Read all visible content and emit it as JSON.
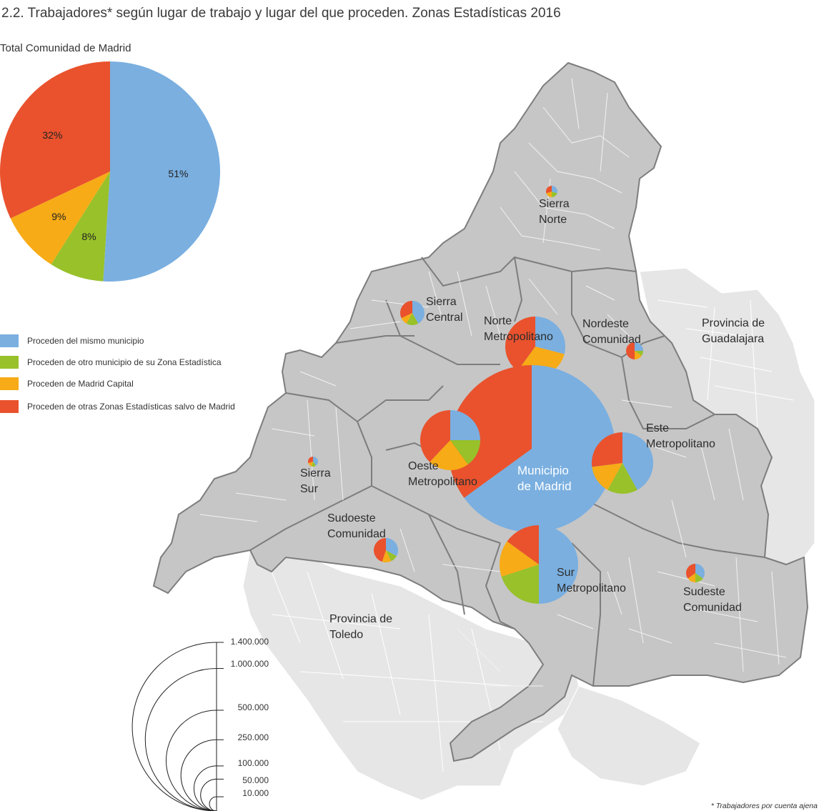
{
  "title": "2.2. Trabajadores* según lugar de trabajo y lugar del que proceden. Zonas Estadísticas 2016",
  "total_pie": {
    "title": "Total Comunidad de Madrid",
    "slices": [
      {
        "label": "51%",
        "value": 51,
        "color": "#7aafe0"
      },
      {
        "label": "8%",
        "value": 8,
        "color": "#98c12a"
      },
      {
        "label": "9%",
        "value": 9,
        "color": "#f7ab16"
      },
      {
        "label": "32%",
        "value": 32,
        "color": "#e9522d"
      }
    ]
  },
  "legend": [
    {
      "label": " Proceden del mismo municipio",
      "color": "#7aafe0"
    },
    {
      "label": "Proceden de otro municipio de su Zona Estadística",
      "color": "#98c12a"
    },
    {
      "label": "Proceden de Madrid Capital",
      "color": "#f7ab16"
    },
    {
      "label": "Proceden de otras Zonas Estadísticas salvo de Madrid",
      "color": "#e9522d"
    }
  ],
  "regions": {
    "guadalajara": "Provincia de Guadalajara",
    "toledo": "Provincia de Toledo"
  },
  "zones": [
    {
      "name": "Sierra Norte",
      "label1": "Sierra",
      "label2": "Norte",
      "shares": [
        30,
        20,
        20,
        30
      ]
    },
    {
      "name": "Sierra Central",
      "label1": "Sierra",
      "label2": "Central",
      "shares": [
        42,
        16,
        10,
        32
      ]
    },
    {
      "name": "Norte Metropolitano",
      "label1": "Norte",
      "label2": "Metropolitano",
      "shares": [
        29,
        0,
        31,
        40
      ]
    },
    {
      "name": "Nordeste Comunidad",
      "label1": "Nordeste",
      "label2": "Comunidad",
      "shares": [
        25,
        10,
        15,
        50
      ]
    },
    {
      "name": "Municipio de Madrid",
      "label1": "Municipio",
      "label2": "de Madrid",
      "shares": [
        65,
        0,
        0,
        35
      ]
    },
    {
      "name": "Oeste Metropolitano",
      "label1": "Oeste",
      "label2": "Metropolitano",
      "shares": [
        25,
        15,
        22,
        38
      ]
    },
    {
      "name": "Este Metropolitano",
      "label1": "Este",
      "label2": "Metropolitano",
      "shares": [
        42,
        16,
        15,
        27
      ]
    },
    {
      "name": "Sierra Sur",
      "label1": "Sierra",
      "label2": "Sur",
      "shares": [
        40,
        15,
        15,
        30
      ]
    },
    {
      "name": "Sudoeste Comunidad",
      "label1": "Sudoeste",
      "label2": "Comunidad",
      "shares": [
        33,
        10,
        12,
        45
      ]
    },
    {
      "name": "Sur Metropolitano",
      "label1": "Sur",
      "label2": "Metropolitano",
      "shares": [
        50,
        20,
        15,
        15
      ]
    },
    {
      "name": "Sudeste Comunidad",
      "label1": "Sudeste",
      "label2": "Comunidad",
      "shares": [
        35,
        15,
        15,
        35
      ]
    }
  ],
  "size_scale": {
    "labels": [
      "1.400.000",
      "1.000.000",
      "500.000",
      "250.000",
      "100.000",
      "50.000",
      "10.000"
    ],
    "values": [
      1400000,
      1000000,
      500000,
      250000,
      100000,
      50000,
      10000
    ]
  },
  "footnote": "* Trabajadores por cuenta ajena",
  "colors": {
    "map_fill": "#c6c6c6",
    "map_stroke": "#7d7d7d",
    "province_fill": "#e6e6e6"
  }
}
